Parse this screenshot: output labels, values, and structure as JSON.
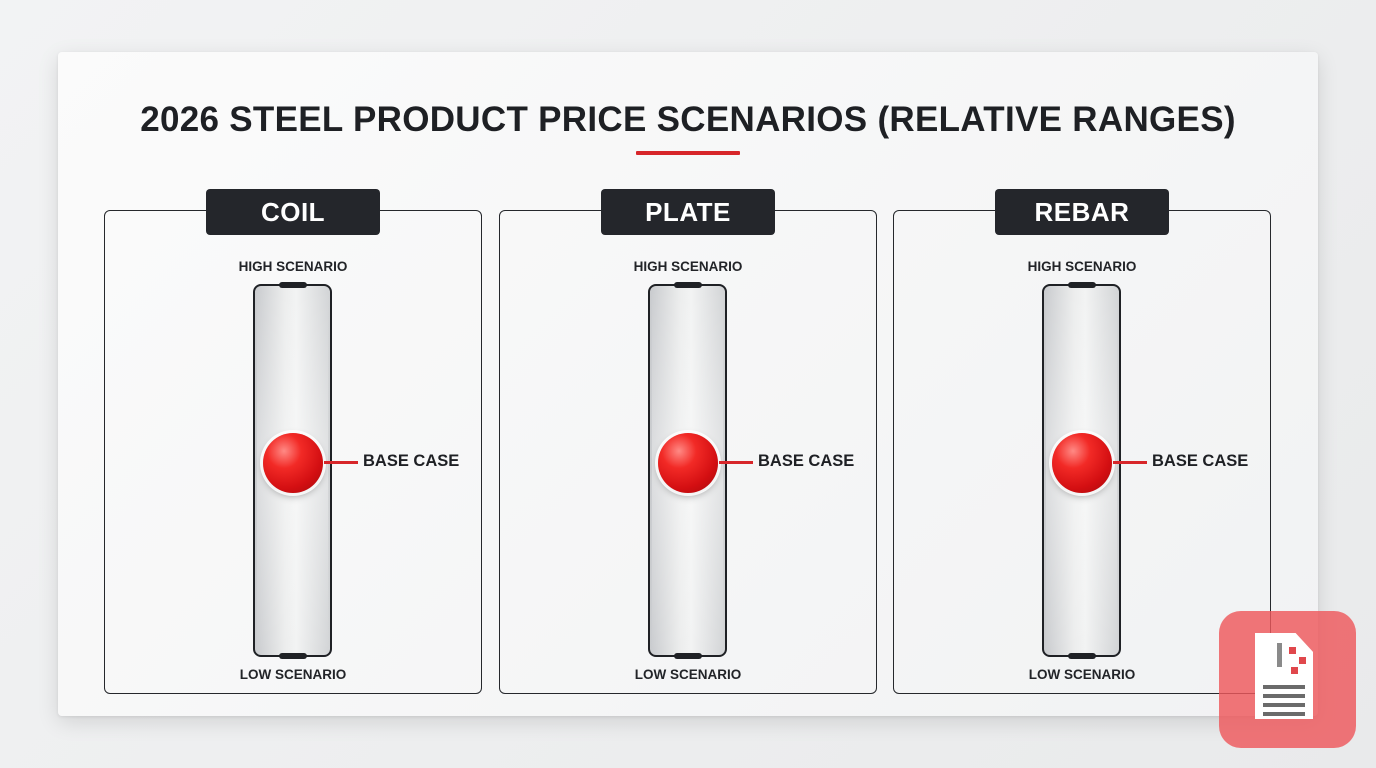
{
  "chart_data": {
    "type": "range",
    "title": "2026 STEEL PRODUCT PRICE SCENARIOS (RELATIVE RANGES)",
    "accent_color": "#d7262a",
    "marker_color": "#e01a1a",
    "scale": "relative",
    "series": [
      {
        "name": "COIL",
        "high_label": "HIGH SCENARIO",
        "low_label": "LOW SCENARIO",
        "base_label": "BASE CASE",
        "low": 0,
        "high": 1,
        "base": 0.52
      },
      {
        "name": "PLATE",
        "high_label": "HIGH SCENARIO",
        "low_label": "LOW SCENARIO",
        "base_label": "BASE CASE",
        "low": 0,
        "high": 1,
        "base": 0.52
      },
      {
        "name": "REBAR",
        "high_label": "HIGH SCENARIO",
        "low_label": "LOW SCENARIO",
        "base_label": "BASE CASE",
        "low": 0,
        "high": 1,
        "base": 0.52
      }
    ]
  },
  "badge": {
    "icon": "document-icon"
  }
}
